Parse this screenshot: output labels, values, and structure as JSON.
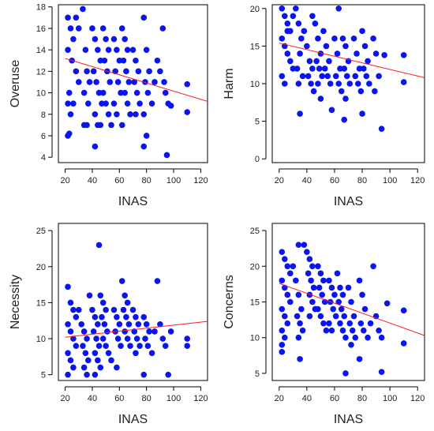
{
  "chart_data": [
    {
      "type": "scatter",
      "xlabel": "INAS",
      "ylabel": "Overuse",
      "xticks": [
        20,
        40,
        60,
        80,
        100,
        120
      ],
      "yticks": [
        4,
        6,
        8,
        10,
        12,
        14,
        16,
        18
      ],
      "xlim": [
        15,
        125
      ],
      "ylim": [
        3.5,
        18.2
      ],
      "trend": [
        [
          20,
          13.2
        ],
        [
          125,
          9.2
        ]
      ],
      "points": [
        [
          22,
          17
        ],
        [
          24,
          16
        ],
        [
          26,
          15
        ],
        [
          28,
          17
        ],
        [
          30,
          16
        ],
        [
          22,
          14
        ],
        [
          25,
          13
        ],
        [
          28,
          12
        ],
        [
          30,
          11
        ],
        [
          23,
          10
        ],
        [
          26,
          9
        ],
        [
          22,
          9
        ],
        [
          24,
          8
        ],
        [
          22,
          6
        ],
        [
          23,
          6.2
        ],
        [
          33,
          17.8
        ],
        [
          35,
          14
        ],
        [
          36,
          12
        ],
        [
          38,
          11
        ],
        [
          34,
          10
        ],
        [
          37,
          9
        ],
        [
          36,
          7
        ],
        [
          34,
          7
        ],
        [
          40,
          16
        ],
        [
          42,
          15
        ],
        [
          44,
          14
        ],
        [
          46,
          13
        ],
        [
          41,
          12
        ],
        [
          43,
          11
        ],
        [
          45,
          10
        ],
        [
          47,
          9
        ],
        [
          42,
          8
        ],
        [
          44,
          7
        ],
        [
          46,
          7
        ],
        [
          42,
          5
        ],
        [
          48,
          16
        ],
        [
          50,
          15
        ],
        [
          52,
          14
        ],
        [
          49,
          13
        ],
        [
          51,
          12
        ],
        [
          53,
          11
        ],
        [
          48,
          10
        ],
        [
          50,
          9
        ],
        [
          52,
          8
        ],
        [
          54,
          7
        ],
        [
          56,
          15
        ],
        [
          58,
          14
        ],
        [
          60,
          13
        ],
        [
          57,
          12
        ],
        [
          59,
          11
        ],
        [
          61,
          10
        ],
        [
          56,
          9
        ],
        [
          58,
          8
        ],
        [
          62,
          16
        ],
        [
          64,
          15
        ],
        [
          66,
          14
        ],
        [
          63,
          13
        ],
        [
          65,
          12
        ],
        [
          67,
          11
        ],
        [
          64,
          10
        ],
        [
          66,
          9
        ],
        [
          68,
          8
        ],
        [
          62,
          7
        ],
        [
          70,
          14
        ],
        [
          72,
          13
        ],
        [
          74,
          12
        ],
        [
          71,
          11
        ],
        [
          73,
          10
        ],
        [
          75,
          9
        ],
        [
          72,
          8
        ],
        [
          78,
          17
        ],
        [
          80,
          14
        ],
        [
          82,
          12
        ],
        [
          79,
          11
        ],
        [
          81,
          10
        ],
        [
          84,
          9
        ],
        [
          78,
          8
        ],
        [
          80,
          6
        ],
        [
          78,
          5
        ],
        [
          88,
          13
        ],
        [
          90,
          12
        ],
        [
          86,
          11
        ],
        [
          92,
          16
        ],
        [
          94,
          10
        ],
        [
          96,
          9
        ],
        [
          93,
          11
        ],
        [
          95,
          4.2
        ],
        [
          98,
          8.8
        ],
        [
          110,
          10.8
        ],
        [
          110,
          8.2
        ]
      ]
    },
    {
      "type": "scatter",
      "xlabel": "INAS",
      "ylabel": "Harm",
      "xticks": [
        20,
        40,
        60,
        80,
        100,
        120
      ],
      "yticks": [
        0,
        5,
        10,
        15,
        20
      ],
      "xlim": [
        15,
        125
      ],
      "ylim": [
        -0.5,
        20.5
      ],
      "trend": [
        [
          20,
          15.4
        ],
        [
          125,
          10.8
        ]
      ],
      "points": [
        [
          22,
          20
        ],
        [
          24,
          19
        ],
        [
          26,
          18
        ],
        [
          28,
          17
        ],
        [
          22,
          16
        ],
        [
          24,
          15
        ],
        [
          26,
          14
        ],
        [
          28,
          13
        ],
        [
          30,
          12
        ],
        [
          22,
          11
        ],
        [
          24,
          10
        ],
        [
          26,
          17
        ],
        [
          30,
          19
        ],
        [
          32,
          20
        ],
        [
          34,
          18
        ],
        [
          36,
          16
        ],
        [
          35,
          14
        ],
        [
          33,
          12
        ],
        [
          37,
          11
        ],
        [
          34,
          10
        ],
        [
          35,
          6
        ],
        [
          38,
          17
        ],
        [
          40,
          15
        ],
        [
          42,
          13
        ],
        [
          44,
          12
        ],
        [
          41,
          11
        ],
        [
          43,
          10
        ],
        [
          45,
          9
        ],
        [
          44,
          19
        ],
        [
          46,
          18
        ],
        [
          48,
          16
        ],
        [
          50,
          14
        ],
        [
          47,
          13
        ],
        [
          49,
          12
        ],
        [
          51,
          11
        ],
        [
          48,
          10
        ],
        [
          50,
          8
        ],
        [
          52,
          17
        ],
        [
          54,
          15
        ],
        [
          56,
          13
        ],
        [
          53,
          12
        ],
        [
          55,
          11
        ],
        [
          57,
          10
        ],
        [
          58,
          6.5
        ],
        [
          60,
          16
        ],
        [
          62,
          14
        ],
        [
          64,
          12
        ],
        [
          61,
          11
        ],
        [
          63,
          10
        ],
        [
          65,
          9
        ],
        [
          63,
          20
        ],
        [
          66,
          16
        ],
        [
          68,
          15
        ],
        [
          70,
          13
        ],
        [
          67,
          12
        ],
        [
          69,
          11
        ],
        [
          71,
          10
        ],
        [
          68,
          8
        ],
        [
          67,
          5.2
        ],
        [
          74,
          16
        ],
        [
          76,
          14
        ],
        [
          78,
          12
        ],
        [
          75,
          11
        ],
        [
          77,
          10
        ],
        [
          79,
          9
        ],
        [
          80,
          17
        ],
        [
          82,
          15
        ],
        [
          84,
          13
        ],
        [
          81,
          12
        ],
        [
          83,
          11
        ],
        [
          85,
          10
        ],
        [
          80,
          6
        ],
        [
          88,
          16
        ],
        [
          90,
          14
        ],
        [
          92,
          11
        ],
        [
          89,
          9
        ],
        [
          94,
          4
        ],
        [
          96,
          13.8
        ],
        [
          110,
          13.8
        ],
        [
          110,
          10.2
        ]
      ]
    },
    {
      "type": "scatter",
      "xlabel": "INAS",
      "ylabel": "Necessity",
      "xticks": [
        20,
        40,
        60,
        80,
        100,
        120
      ],
      "yticks": [
        5,
        10,
        15,
        20,
        25
      ],
      "xlim": [
        15,
        125
      ],
      "ylim": [
        4.2,
        26
      ],
      "trend": [
        [
          20,
          10.2
        ],
        [
          125,
          12.4
        ]
      ],
      "points": [
        [
          22,
          17.2
        ],
        [
          24,
          15
        ],
        [
          26,
          14
        ],
        [
          28,
          13
        ],
        [
          22,
          12
        ],
        [
          24,
          11
        ],
        [
          26,
          10
        ],
        [
          28,
          9
        ],
        [
          22,
          8
        ],
        [
          24,
          7
        ],
        [
          26,
          6
        ],
        [
          22,
          5
        ],
        [
          30,
          14
        ],
        [
          32,
          12
        ],
        [
          34,
          11
        ],
        [
          36,
          10
        ],
        [
          33,
          9
        ],
        [
          35,
          8
        ],
        [
          37,
          7
        ],
        [
          34,
          6
        ],
        [
          36,
          5
        ],
        [
          38,
          16
        ],
        [
          40,
          14
        ],
        [
          42,
          13
        ],
        [
          44,
          12
        ],
        [
          41,
          11
        ],
        [
          43,
          10
        ],
        [
          45,
          9
        ],
        [
          42,
          8
        ],
        [
          44,
          7
        ],
        [
          46,
          6
        ],
        [
          42,
          5
        ],
        [
          45,
          23
        ],
        [
          46,
          16
        ],
        [
          48,
          15
        ],
        [
          50,
          14
        ],
        [
          47,
          13
        ],
        [
          49,
          12
        ],
        [
          51,
          11
        ],
        [
          48,
          10
        ],
        [
          50,
          9
        ],
        [
          52,
          8
        ],
        [
          54,
          7
        ],
        [
          56,
          14
        ],
        [
          58,
          13
        ],
        [
          60,
          12
        ],
        [
          57,
          11
        ],
        [
          59,
          10
        ],
        [
          61,
          9
        ],
        [
          58,
          6
        ],
        [
          62,
          18
        ],
        [
          64,
          16
        ],
        [
          66,
          15
        ],
        [
          63,
          14
        ],
        [
          65,
          13
        ],
        [
          67,
          12
        ],
        [
          64,
          11
        ],
        [
          66,
          10
        ],
        [
          68,
          9
        ],
        [
          70,
          14
        ],
        [
          72,
          13
        ],
        [
          74,
          12
        ],
        [
          71,
          11
        ],
        [
          73,
          10
        ],
        [
          75,
          9
        ],
        [
          72,
          8
        ],
        [
          78,
          13
        ],
        [
          80,
          12
        ],
        [
          82,
          11
        ],
        [
          79,
          10
        ],
        [
          81,
          9
        ],
        [
          84,
          8
        ],
        [
          78,
          5
        ],
        [
          88,
          18
        ],
        [
          90,
          12
        ],
        [
          86,
          11
        ],
        [
          92,
          10
        ],
        [
          94,
          9
        ],
        [
          96,
          5
        ],
        [
          98,
          11
        ],
        [
          110,
          10
        ],
        [
          110,
          9
        ]
      ]
    },
    {
      "type": "scatter",
      "xlabel": "INAS",
      "ylabel": "Concerns",
      "xticks": [
        20,
        40,
        60,
        80,
        100,
        120
      ],
      "yticks": [
        5,
        10,
        15,
        20,
        25
      ],
      "xlim": [
        15,
        125
      ],
      "ylim": [
        4,
        26
      ],
      "trend": [
        [
          20,
          17.6
        ],
        [
          125,
          10.3
        ]
      ],
      "points": [
        [
          22,
          22
        ],
        [
          24,
          21
        ],
        [
          26,
          20
        ],
        [
          28,
          19
        ],
        [
          22,
          18
        ],
        [
          24,
          17
        ],
        [
          26,
          16
        ],
        [
          28,
          15
        ],
        [
          22,
          14
        ],
        [
          24,
          13
        ],
        [
          26,
          12
        ],
        [
          22,
          11
        ],
        [
          24,
          10
        ],
        [
          22,
          9
        ],
        [
          22,
          8
        ],
        [
          30,
          20
        ],
        [
          32,
          18
        ],
        [
          34,
          16
        ],
        [
          36,
          14
        ],
        [
          33,
          13
        ],
        [
          35,
          12
        ],
        [
          37,
          11
        ],
        [
          34,
          10
        ],
        [
          35,
          7
        ],
        [
          34,
          23
        ],
        [
          38,
          23
        ],
        [
          40,
          22
        ],
        [
          42,
          21
        ],
        [
          44,
          20
        ],
        [
          41,
          19
        ],
        [
          43,
          18
        ],
        [
          45,
          17
        ],
        [
          42,
          16
        ],
        [
          44,
          15
        ],
        [
          46,
          14
        ],
        [
          42,
          13
        ],
        [
          48,
          20
        ],
        [
          50,
          19
        ],
        [
          52,
          18
        ],
        [
          49,
          17
        ],
        [
          51,
          16
        ],
        [
          53,
          15
        ],
        [
          48,
          14
        ],
        [
          50,
          13
        ],
        [
          52,
          12
        ],
        [
          54,
          11
        ],
        [
          56,
          18
        ],
        [
          58,
          17
        ],
        [
          60,
          16
        ],
        [
          57,
          15
        ],
        [
          59,
          14
        ],
        [
          61,
          13
        ],
        [
          56,
          12
        ],
        [
          58,
          11
        ],
        [
          62,
          19
        ],
        [
          64,
          17
        ],
        [
          66,
          16
        ],
        [
          63,
          15
        ],
        [
          65,
          14
        ],
        [
          67,
          13
        ],
        [
          64,
          12
        ],
        [
          66,
          11
        ],
        [
          68,
          10
        ],
        [
          68,
          5
        ],
        [
          70,
          17
        ],
        [
          72,
          15
        ],
        [
          74,
          13
        ],
        [
          71,
          12
        ],
        [
          73,
          11
        ],
        [
          75,
          10
        ],
        [
          72,
          9
        ],
        [
          78,
          18
        ],
        [
          80,
          16
        ],
        [
          82,
          14
        ],
        [
          79,
          12
        ],
        [
          81,
          11
        ],
        [
          84,
          10
        ],
        [
          78,
          7
        ],
        [
          88,
          20
        ],
        [
          90,
          13
        ],
        [
          86,
          12
        ],
        [
          92,
          11
        ],
        [
          94,
          10
        ],
        [
          94,
          5.2
        ],
        [
          98,
          14.8
        ],
        [
          110,
          13.8
        ],
        [
          110,
          9.2
        ]
      ]
    }
  ]
}
